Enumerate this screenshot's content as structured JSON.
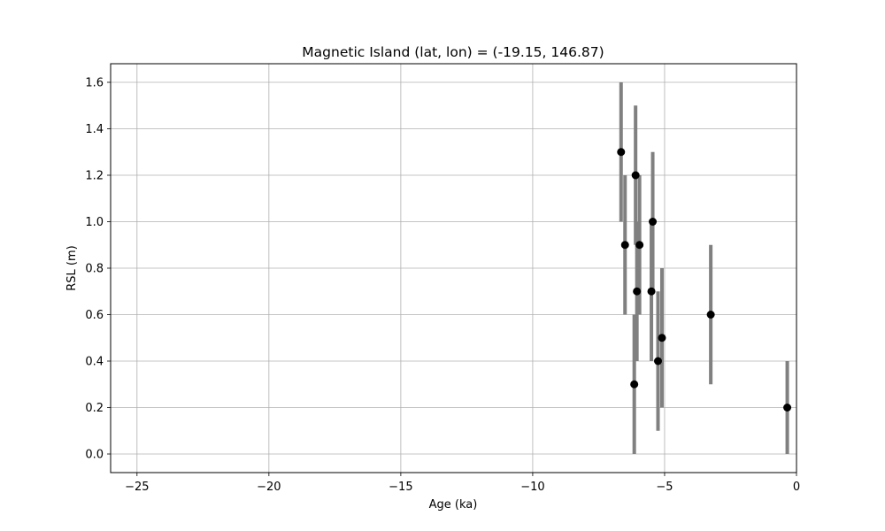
{
  "chart_data": {
    "type": "scatter",
    "title": "Magnetic Island (lat, lon) = (-19.15, 146.87)",
    "xlabel": "Age (ka)",
    "ylabel": "RSL (m)",
    "xlim": [
      -26,
      0
    ],
    "ylim": [
      -0.08,
      1.68
    ],
    "xticks": [
      -25,
      -20,
      -15,
      -10,
      -5,
      0
    ],
    "xtick_labels": [
      "−25",
      "−20",
      "−15",
      "−10",
      "−5",
      "0"
    ],
    "yticks": [
      0.0,
      0.2,
      0.4,
      0.6,
      0.8,
      1.0,
      1.2,
      1.4,
      1.6
    ],
    "ytick_labels": [
      "0.0",
      "0.2",
      "0.4",
      "0.6",
      "0.8",
      "1.0",
      "1.2",
      "1.4",
      "1.6"
    ],
    "grid": true,
    "colors": {
      "marker": "#000000",
      "errorbar": "#808080",
      "grid": "#b0b0b0"
    },
    "series": [
      {
        "points": [
          {
            "x": -6.65,
            "y": 1.3,
            "ylow": 1.0,
            "yhigh": 1.6
          },
          {
            "x": -6.5,
            "y": 0.9,
            "ylow": 0.6,
            "yhigh": 1.2
          },
          {
            "x": -6.1,
            "y": 1.2,
            "ylow": 0.9,
            "yhigh": 1.5
          },
          {
            "x": -6.05,
            "y": 0.7,
            "ylow": 0.4,
            "yhigh": 1.0
          },
          {
            "x": -6.15,
            "y": 0.3,
            "ylow": 0.0,
            "yhigh": 0.6
          },
          {
            "x": -5.95,
            "y": 0.9,
            "ylow": 0.6,
            "yhigh": 1.2
          },
          {
            "x": -5.45,
            "y": 1.0,
            "ylow": 0.7,
            "yhigh": 1.3
          },
          {
            "x": -5.5,
            "y": 0.7,
            "ylow": 0.4,
            "yhigh": 1.0
          },
          {
            "x": -5.25,
            "y": 0.4,
            "ylow": 0.1,
            "yhigh": 0.7
          },
          {
            "x": -5.1,
            "y": 0.5,
            "ylow": 0.2,
            "yhigh": 0.8
          },
          {
            "x": -3.25,
            "y": 0.6,
            "ylow": 0.3,
            "yhigh": 0.9
          },
          {
            "x": -0.35,
            "y": 0.2,
            "ylow": 0.0,
            "yhigh": 0.4
          }
        ]
      }
    ]
  }
}
